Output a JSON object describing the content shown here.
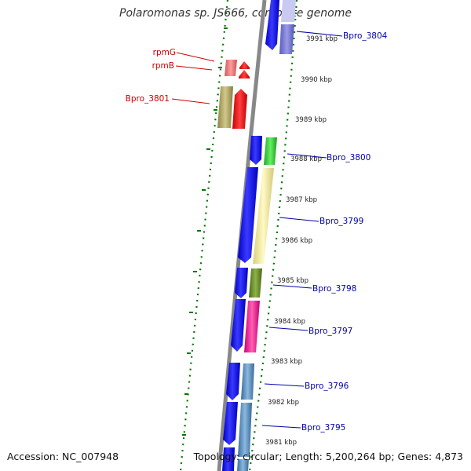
{
  "title": "Polaromonas sp. JS666, complete genome",
  "footer": {
    "accession_label": "Accession: NC_007948",
    "topology_label": "Topology: circular; Length: 5,200,264 bp; Genes: 4,873"
  },
  "colors": {
    "backbone": "#888888",
    "dotted_ring": "#007700",
    "label_left": "#cc0000",
    "label_right": "#0000aa"
  },
  "kbp_ticks": [
    "3991 kbp",
    "3990 kbp",
    "3989 kbp",
    "3988 kbp",
    "3987 kbp",
    "3986 kbp",
    "3985 kbp",
    "3984 kbp",
    "3983 kbp",
    "3982 kbp",
    "3981 kbp"
  ],
  "genes_right": [
    {
      "label": "Bpro_3804"
    },
    {
      "label": "Bpro_3800"
    },
    {
      "label": "Bpro_3799"
    },
    {
      "label": "Bpro_3798"
    },
    {
      "label": "Bpro_3797"
    },
    {
      "label": "Bpro_3796"
    },
    {
      "label": "Bpro_3795"
    }
  ],
  "genes_left": [
    {
      "label": "rpmG"
    },
    {
      "label": "rpmB"
    },
    {
      "label": "Bpro_3801"
    }
  ]
}
